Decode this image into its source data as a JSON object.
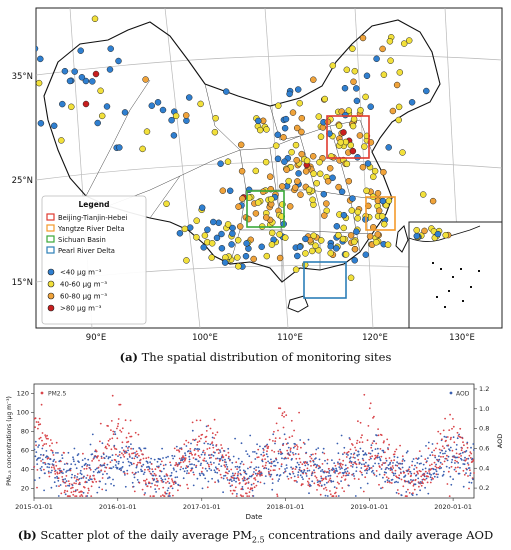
{
  "figure_a": {
    "caption_label": "(a)",
    "caption_text": "The spatial distribution of monitoring sites",
    "lat_labels": [
      "35°N",
      "25°N",
      "15°N"
    ],
    "lon_labels": [
      "90°E",
      "100°E",
      "110°E",
      "120°E",
      "130°E"
    ],
    "inset_lon_label": "130°E",
    "legend": {
      "title": "Legend",
      "regions": [
        {
          "label": "Beijing-Tianjin-Hebei",
          "color": "#e03a2f"
        },
        {
          "label": "Yangtze River Delta",
          "color": "#f39a2b"
        },
        {
          "label": "Sichuan Basin",
          "color": "#3aa83a"
        },
        {
          "label": "Pearl River Delta",
          "color": "#2c7fb8"
        }
      ],
      "classes": [
        {
          "prefix": "<40",
          "unit": " μg m⁻³",
          "color": "#2f7fd0"
        },
        {
          "prefix": "40-60",
          "unit": " μg m⁻³",
          "color": "#f2e03a"
        },
        {
          "prefix": "60-80",
          "unit": " μg m⁻³",
          "color": "#f0a33a"
        },
        {
          "prefix": ">80",
          "unit": " μg m⁻³",
          "color": "#c81e1e"
        }
      ]
    }
  },
  "figure_b": {
    "caption_label": "(b)",
    "caption_pre": "Scatter plot of the daily average PM",
    "caption_sub": "2.5",
    "caption_post": " concentrations and daily average AOD"
  },
  "chart_data": [
    {
      "type": "scatter",
      "title": "",
      "xlabel": "",
      "ylabel": "",
      "xaxis": "longitude",
      "yaxis": "latitude",
      "ylim": [
        10,
        45
      ],
      "xlim": [
        73,
        135
      ],
      "series": [
        {
          "name": "<40 μg m⁻³",
          "color": "#2f7fd0"
        },
        {
          "name": "40-60 μg m⁻³",
          "color": "#f2e03a"
        },
        {
          "name": "60-80 μg m⁻³",
          "color": "#f0a33a"
        },
        {
          "name": ">80 μg m⁻³",
          "color": "#c81e1e"
        }
      ],
      "regions": [
        {
          "name": "Beijing-Tianjin-Hebei",
          "lon": [
            114,
            120
          ],
          "lat": [
            36,
            42
          ]
        },
        {
          "name": "Yangtze River Delta",
          "lon": [
            118,
            123
          ],
          "lat": [
            28,
            33
          ]
        },
        {
          "name": "Sichuan Basin",
          "lon": [
            103,
            109
          ],
          "lat": [
            28,
            32.5
          ]
        },
        {
          "name": "Pearl River Delta",
          "lon": [
            111.5,
            115.5
          ],
          "lat": [
            20.5,
            24.5
          ]
        }
      ]
    },
    {
      "type": "scatter",
      "title": "",
      "xlabel": "Date",
      "ylabel": "PM₂.₅ concentrations (μg m⁻³)",
      "y2label": "AOD",
      "xlim": [
        "2015-01-01",
        "2020-04-01"
      ],
      "ylim": [
        10,
        130
      ],
      "y2lim": [
        0.1,
        1.25
      ],
      "x_ticks": [
        "2015-01-01",
        "2016-01-01",
        "2017-01-01",
        "2018-01-01",
        "2019-01-01",
        "2020-01-01"
      ],
      "y_ticks": [
        20,
        40,
        60,
        80,
        100,
        120
      ],
      "y2_ticks": [
        "0.2",
        "0.4",
        "0.6",
        "0.8",
        "1.0",
        "1.2"
      ],
      "series": [
        {
          "name": "PM2.5",
          "color": "#d9454a",
          "axis": "left"
        },
        {
          "name": "AOD",
          "color": "#3a5fb0",
          "axis": "right"
        }
      ]
    }
  ]
}
